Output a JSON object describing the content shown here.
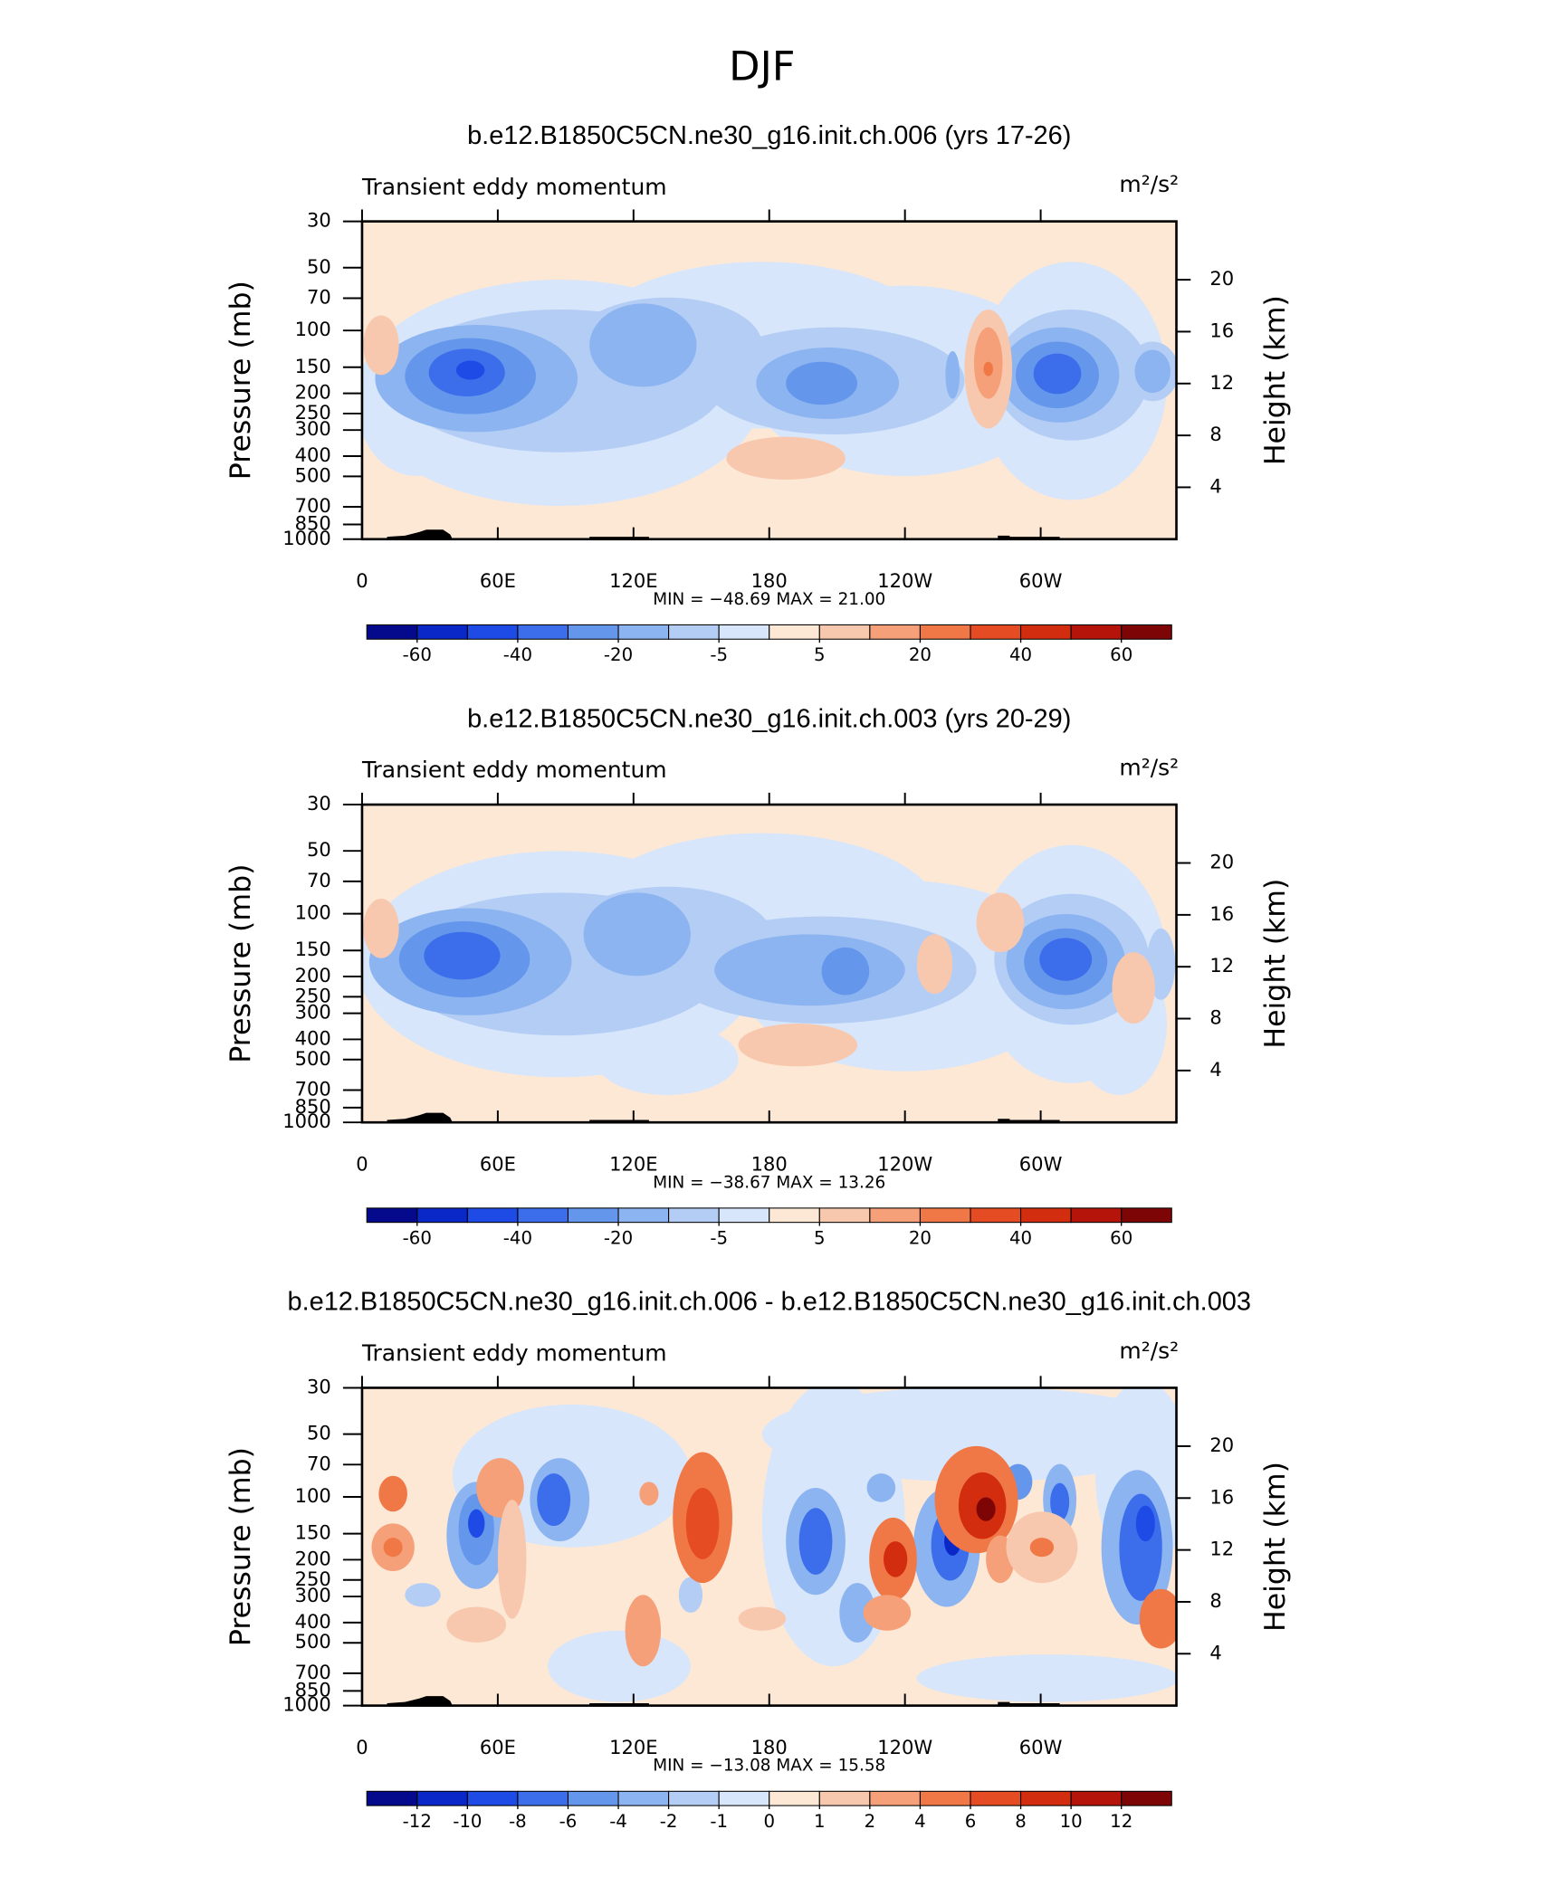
{
  "title": "DJF",
  "chart_data": [
    {
      "type": "contour",
      "title": "b.e12.B1850C5CN.ne30_g16.init.ch.006 (yrs 17-26)",
      "subtitle": "Transient eddy momentum",
      "units": "m²/s²",
      "ylabel": "Pressure (mb)",
      "y2label": "Height (km)",
      "stats": "MIN = −48.69   MAX =   21.00",
      "xlim": [
        0,
        360
      ],
      "xticks": [
        0,
        {
          "value": 60,
          "label": "60E"
        },
        {
          "value": 120,
          "label": "120E"
        },
        180,
        {
          "value": 240,
          "label": "120W"
        },
        {
          "value": 300,
          "label": "60W"
        }
      ],
      "ylim": [
        1000,
        30
      ],
      "ylog": true,
      "yticks": [
        1000,
        850,
        700,
        500,
        400,
        300,
        250,
        200,
        150,
        100,
        70,
        50,
        30
      ],
      "y2lim": [
        0,
        24.5
      ],
      "y2ticks": [
        4,
        8,
        12,
        16,
        20
      ],
      "colorbar": {
        "levels": [
          -60,
          null,
          -40,
          null,
          -20,
          null,
          -5,
          null,
          5,
          null,
          20,
          null,
          40,
          null,
          60
        ],
        "colors": [
          "#050a8c",
          "#0a28c8",
          "#1e4be6",
          "#3c6eeb",
          "#6496eb",
          "#8cb4f0",
          "#b4cdf5",
          "#d7e6fa",
          "#fde8d6",
          "#f8c8ae",
          "#f5a078",
          "#f07846",
          "#e64c23",
          "#d22d0f",
          "#b4140a",
          "#7d0505"
        ]
      }
    },
    {
      "type": "contour",
      "title": "b.e12.B1850C5CN.ne30_g16.init.ch.003 (yrs 20-29)",
      "subtitle": "Transient eddy momentum",
      "units": "m²/s²",
      "ylabel": "Pressure (mb)",
      "y2label": "Height (km)",
      "stats": "MIN = −38.67   MAX =   13.26",
      "xlim": [
        0,
        360
      ],
      "xticks": [
        0,
        {
          "value": 60,
          "label": "60E"
        },
        {
          "value": 120,
          "label": "120E"
        },
        180,
        {
          "value": 240,
          "label": "120W"
        },
        {
          "value": 300,
          "label": "60W"
        }
      ],
      "ylim": [
        1000,
        30
      ],
      "ylog": true,
      "yticks": [
        1000,
        850,
        700,
        500,
        400,
        300,
        250,
        200,
        150,
        100,
        70,
        50,
        30
      ],
      "y2lim": [
        0,
        24.5
      ],
      "y2ticks": [
        4,
        8,
        12,
        16,
        20
      ],
      "colorbar": {
        "levels": [
          -60,
          null,
          -40,
          null,
          -20,
          null,
          -5,
          null,
          5,
          null,
          20,
          null,
          40,
          null,
          60
        ],
        "colors": [
          "#050a8c",
          "#0a28c8",
          "#1e4be6",
          "#3c6eeb",
          "#6496eb",
          "#8cb4f0",
          "#b4cdf5",
          "#d7e6fa",
          "#fde8d6",
          "#f8c8ae",
          "#f5a078",
          "#f07846",
          "#e64c23",
          "#d22d0f",
          "#b4140a",
          "#7d0505"
        ]
      }
    },
    {
      "type": "contour",
      "title": "b.e12.B1850C5CN.ne30_g16.init.ch.006 - b.e12.B1850C5CN.ne30_g16.init.ch.003",
      "subtitle": "Transient eddy momentum",
      "units": "m²/s²",
      "ylabel": "Pressure (mb)",
      "y2label": "Height (km)",
      "stats": "MIN = −13.08   MAX =   15.58",
      "xlim": [
        0,
        360
      ],
      "xticks": [
        0,
        {
          "value": 60,
          "label": "60E"
        },
        {
          "value": 120,
          "label": "120E"
        },
        180,
        {
          "value": 240,
          "label": "120W"
        },
        {
          "value": 300,
          "label": "60W"
        }
      ],
      "ylim": [
        1000,
        30
      ],
      "ylog": true,
      "yticks": [
        1000,
        850,
        700,
        500,
        400,
        300,
        250,
        200,
        150,
        100,
        70,
        50,
        30
      ],
      "y2lim": [
        0,
        24.5
      ],
      "y2ticks": [
        4,
        8,
        12,
        16,
        20
      ],
      "colorbar": {
        "levels": [
          -12,
          -10,
          -8,
          -6,
          -4,
          -2,
          -1,
          0,
          1,
          2,
          4,
          6,
          8,
          10,
          12
        ],
        "colors": [
          "#050a8c",
          "#0a28c8",
          "#1e4be6",
          "#3c6eeb",
          "#6496eb",
          "#8cb4f0",
          "#b4cdf5",
          "#d7e6fa",
          "#fde8d6",
          "#f8c8ae",
          "#f5a078",
          "#f07846",
          "#e64c23",
          "#d22d0f",
          "#b4140a",
          "#7d0505"
        ]
      }
    }
  ]
}
